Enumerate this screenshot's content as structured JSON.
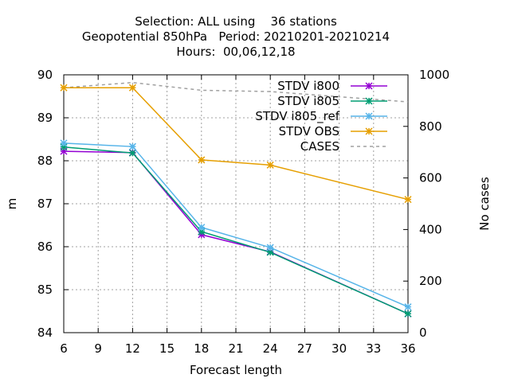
{
  "chart_data": {
    "type": "line",
    "title_lines": [
      "Selection: ALL using    36 stations",
      "Geopotential 850hPa   Period: 20210201-20210214",
      "Hours:  00,06,12,18"
    ],
    "xlabel": "Forecast length",
    "ylabel": "m",
    "y2label": "No cases",
    "xlim": [
      6,
      36
    ],
    "ylim": [
      84,
      90
    ],
    "y2lim": [
      0,
      1000
    ],
    "xticks": [
      6,
      9,
      12,
      15,
      18,
      21,
      24,
      27,
      30,
      33,
      36
    ],
    "yticks": [
      84,
      85,
      86,
      87,
      88,
      89,
      90
    ],
    "y2ticks": [
      0,
      200,
      400,
      600,
      800,
      1000
    ],
    "grid": true,
    "legend_position": "top-right",
    "x": [
      6,
      12,
      18,
      24,
      36
    ],
    "series": [
      {
        "name": "STDV i800",
        "color": "#9400d3",
        "axis": "y",
        "style": "line-points",
        "values": [
          88.22,
          88.19,
          86.28,
          85.88,
          84.44
        ]
      },
      {
        "name": "STDV i805",
        "color": "#009e73",
        "axis": "y",
        "style": "line-points",
        "values": [
          88.32,
          88.18,
          86.35,
          85.87,
          84.44
        ]
      },
      {
        "name": "STDV i805_ref",
        "color": "#56b4e9",
        "axis": "y",
        "style": "line-points",
        "values": [
          88.41,
          88.33,
          86.45,
          85.98,
          84.6
        ]
      },
      {
        "name": "STDV OBS",
        "color": "#e69f00",
        "axis": "y",
        "style": "line-points",
        "values": [
          89.7,
          89.7,
          88.02,
          87.9,
          87.1
        ]
      },
      {
        "name": "CASES",
        "color": "#a0a0a0",
        "axis": "y2",
        "style": "dashed",
        "values": [
          950,
          970,
          940,
          935,
          895
        ]
      }
    ]
  }
}
